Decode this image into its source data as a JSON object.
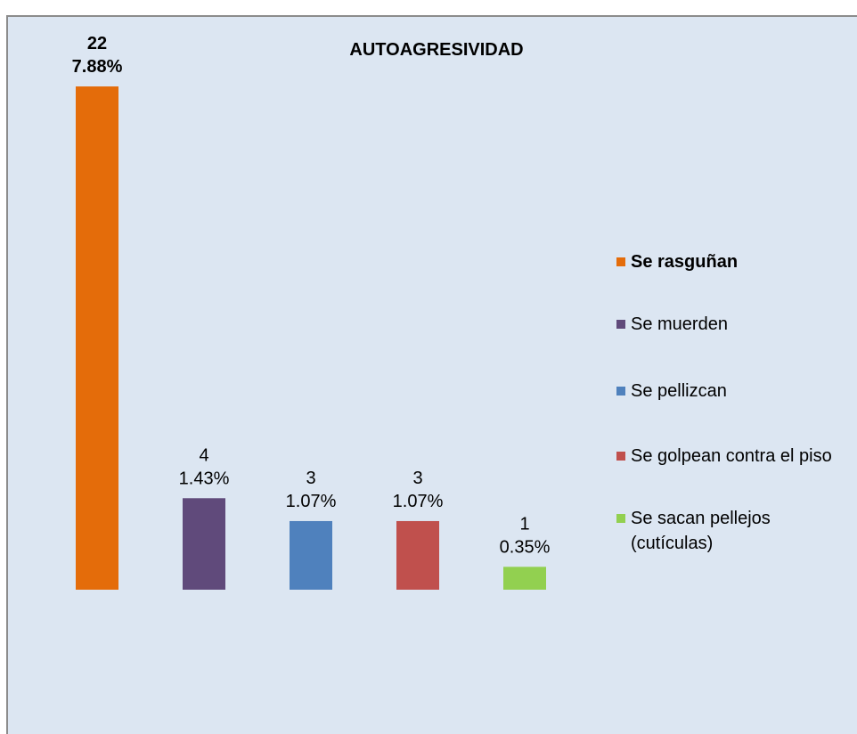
{
  "chart_data": {
    "type": "bar",
    "title": "AUTOAGRESIVIDAD",
    "categories": [
      "Se rasguñan",
      "Se muerden",
      "Se pellizcan",
      "Se golpean contra el piso",
      "Se sacan pellejos (cutículas)"
    ],
    "values": [
      22,
      4,
      3,
      3,
      1
    ],
    "value_labels": [
      [
        "22",
        "7.88%"
      ],
      [
        "4",
        "1.43%"
      ],
      [
        "3",
        "1.07%"
      ],
      [
        "3",
        "1.07%"
      ],
      [
        "1",
        "0.35%"
      ]
    ],
    "colors": [
      "#e46c0a",
      "#604a7b",
      "#4f81bd",
      "#c0504d",
      "#92d050"
    ],
    "ylim": [
      0,
      25
    ],
    "legend": "right"
  }
}
